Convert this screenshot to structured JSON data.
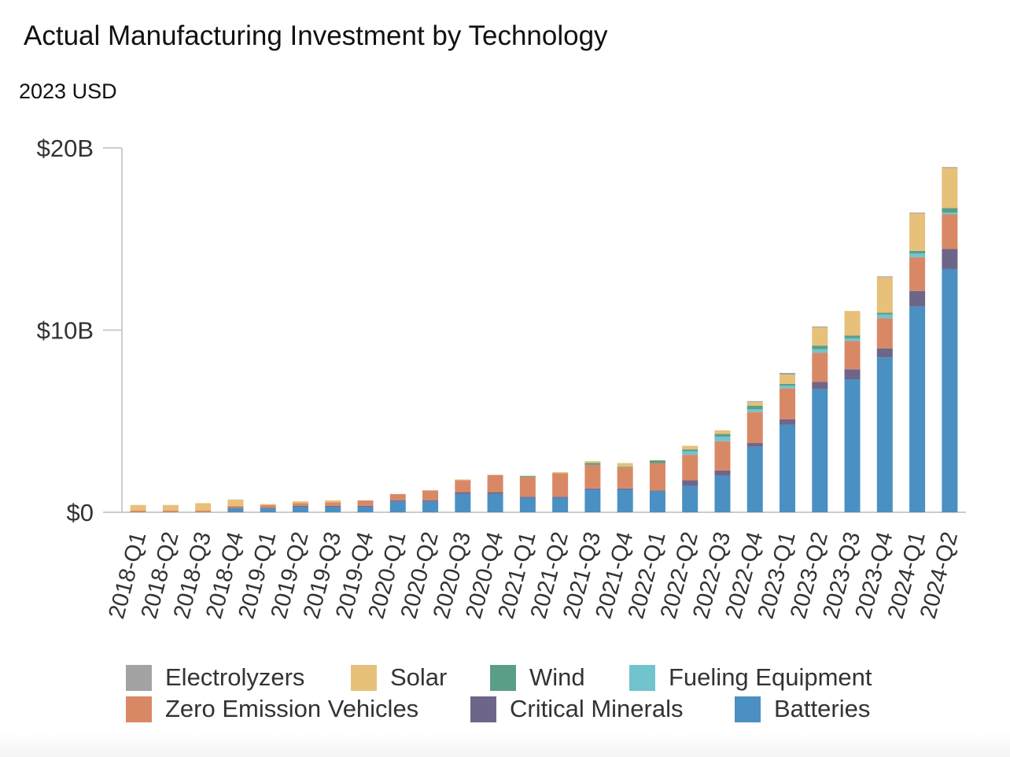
{
  "title": "Actual Manufacturing Investment by Technology",
  "subtitle": "2023 USD",
  "chart_data": {
    "type": "bar",
    "stacked": true,
    "title": "Actual Manufacturing Investment by Technology",
    "subtitle": "2023 USD",
    "xlabel": "",
    "ylabel": "",
    "ylim": [
      0,
      20
    ],
    "yunit": "Billion USD",
    "yticks": [
      "$0",
      "$10B",
      "$20B"
    ],
    "ytick_values": [
      0,
      10,
      20
    ],
    "grid": false,
    "legend_position": "bottom",
    "categories": [
      "2018-Q1",
      "2018-Q2",
      "2018-Q3",
      "2018-Q4",
      "2019-Q1",
      "2019-Q2",
      "2019-Q3",
      "2019-Q4",
      "2020-Q1",
      "2020-Q2",
      "2020-Q3",
      "2020-Q4",
      "2021-Q1",
      "2021-Q2",
      "2021-Q3",
      "2021-Q4",
      "2022-Q1",
      "2022-Q2",
      "2022-Q3",
      "2022-Q4",
      "2023-Q1",
      "2023-Q2",
      "2023-Q3",
      "2023-Q4",
      "2024-Q1",
      "2024-Q2"
    ],
    "series": [
      {
        "name": "Batteries",
        "color": "#4a90c2",
        "values": [
          0.0,
          0.0,
          0.0,
          0.2,
          0.2,
          0.3,
          0.3,
          0.3,
          0.6,
          0.6,
          1.0,
          1.0,
          0.8,
          0.8,
          1.25,
          1.25,
          1.15,
          1.45,
          2.0,
          3.6,
          4.8,
          6.75,
          7.3,
          8.5,
          11.3,
          13.35
        ]
      },
      {
        "name": "Critical Minerals",
        "color": "#6e6689",
        "values": [
          0.0,
          0.0,
          0.0,
          0.05,
          0.05,
          0.05,
          0.05,
          0.05,
          0.05,
          0.05,
          0.1,
          0.1,
          0.05,
          0.05,
          0.05,
          0.05,
          0.05,
          0.3,
          0.3,
          0.2,
          0.3,
          0.4,
          0.55,
          0.5,
          0.85,
          1.1
        ]
      },
      {
        "name": "Zero Emission Vehicles",
        "color": "#d98866",
        "values": [
          0.1,
          0.1,
          0.1,
          0.1,
          0.15,
          0.15,
          0.2,
          0.3,
          0.35,
          0.55,
          0.65,
          0.95,
          1.1,
          1.3,
          1.3,
          1.15,
          1.5,
          1.4,
          1.6,
          1.7,
          1.7,
          1.6,
          1.55,
          1.65,
          1.85,
          1.9
        ]
      },
      {
        "name": "Fueling Equipment",
        "color": "#72c4cc",
        "values": [
          0,
          0,
          0,
          0,
          0,
          0,
          0,
          0,
          0,
          0,
          0,
          0,
          0,
          0,
          0,
          0,
          0,
          0.2,
          0.25,
          0.15,
          0.15,
          0.2,
          0.15,
          0.2,
          0.2,
          0.1
        ]
      },
      {
        "name": "Wind",
        "color": "#5a9e87",
        "values": [
          0,
          0,
          0,
          0,
          0,
          0,
          0,
          0,
          0,
          0,
          0,
          0,
          0.05,
          0,
          0.1,
          0.05,
          0.15,
          0.1,
          0.15,
          0.2,
          0.1,
          0.2,
          0.15,
          0.1,
          0.15,
          0.25
        ]
      },
      {
        "name": "Solar",
        "color": "#e7c079",
        "values": [
          0.3,
          0.3,
          0.4,
          0.35,
          0.05,
          0.1,
          0.1,
          0.0,
          0.0,
          0.0,
          0.05,
          0.0,
          0.0,
          0.05,
          0.1,
          0.2,
          0.0,
          0.2,
          0.2,
          0.2,
          0.5,
          1.0,
          1.35,
          1.95,
          2.05,
          2.2
        ]
      },
      {
        "name": "Electrolyzers",
        "color": "#a3a3a3",
        "values": [
          0,
          0,
          0,
          0,
          0,
          0,
          0,
          0,
          0,
          0,
          0,
          0,
          0,
          0,
          0,
          0,
          0,
          0,
          0,
          0.05,
          0.1,
          0.05,
          0.0,
          0.05,
          0.05,
          0.05
        ]
      }
    ]
  },
  "legend": [
    {
      "label": "Electrolyzers",
      "color": "#a3a3a3"
    },
    {
      "label": "Solar",
      "color": "#e7c079"
    },
    {
      "label": "Wind",
      "color": "#5a9e87"
    },
    {
      "label": "Fueling Equipment",
      "color": "#72c4cc"
    },
    {
      "label": "Zero Emission Vehicles",
      "color": "#d98866"
    },
    {
      "label": "Critical Minerals",
      "color": "#6e6689"
    },
    {
      "label": "Batteries",
      "color": "#4a90c2"
    }
  ]
}
